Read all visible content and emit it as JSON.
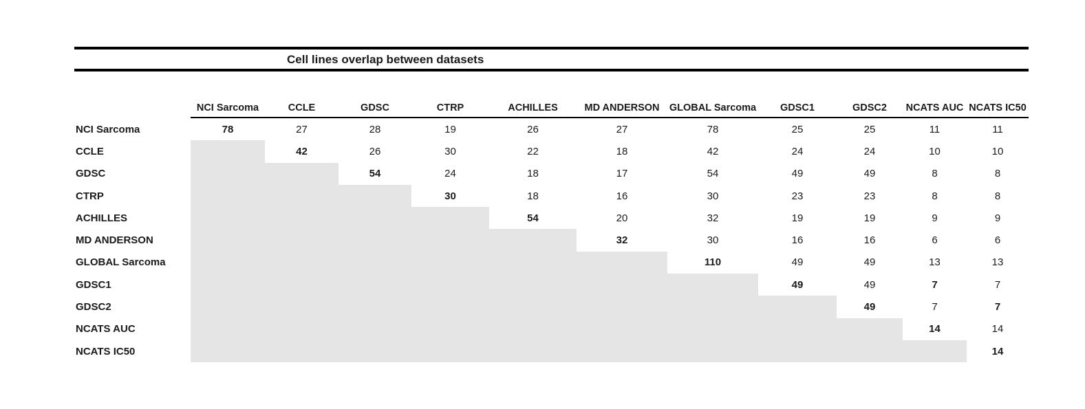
{
  "title": "Cell lines overlap between datasets",
  "chart_data": {
    "type": "table",
    "title": "Cell lines overlap between datasets",
    "description_style": "upper-triangular overlap count matrix; diagonal values bold; lower triangle filled gray",
    "columns": [
      "NCI Sarcoma",
      "CCLE",
      "GDSC",
      "CTRP",
      "ACHILLES",
      "MD ANDERSON",
      "GLOBAL Sarcoma",
      "GDSC1",
      "GDSC2",
      "NCATS AUC",
      "NCATS IC50"
    ],
    "rows": [
      {
        "label": "NCI Sarcoma",
        "gray_cols": 0,
        "values": [
          {
            "v": 78,
            "b": true
          },
          {
            "v": 27
          },
          {
            "v": 28
          },
          {
            "v": 19
          },
          {
            "v": 26
          },
          {
            "v": 27
          },
          {
            "v": 78
          },
          {
            "v": 25
          },
          {
            "v": 25
          },
          {
            "v": 11
          },
          {
            "v": 11
          }
        ]
      },
      {
        "label": "CCLE",
        "gray_cols": 1,
        "values": [
          {
            "v": 42,
            "b": true
          },
          {
            "v": 26
          },
          {
            "v": 30
          },
          {
            "v": 22
          },
          {
            "v": 18
          },
          {
            "v": 42
          },
          {
            "v": 24
          },
          {
            "v": 24
          },
          {
            "v": 10
          },
          {
            "v": 10
          }
        ]
      },
      {
        "label": "GDSC",
        "gray_cols": 2,
        "values": [
          {
            "v": 54,
            "b": true
          },
          {
            "v": 24
          },
          {
            "v": 18
          },
          {
            "v": 17
          },
          {
            "v": 54
          },
          {
            "v": 49
          },
          {
            "v": 49
          },
          {
            "v": 8
          },
          {
            "v": 8
          }
        ]
      },
      {
        "label": "CTRP",
        "gray_cols": 3,
        "values": [
          {
            "v": 30,
            "b": true
          },
          {
            "v": 18
          },
          {
            "v": 16
          },
          {
            "v": 30
          },
          {
            "v": 23
          },
          {
            "v": 23
          },
          {
            "v": 8
          },
          {
            "v": 8
          }
        ]
      },
      {
        "label": "ACHILLES",
        "gray_cols": 4,
        "values": [
          {
            "v": 54,
            "b": true
          },
          {
            "v": 20
          },
          {
            "v": 32
          },
          {
            "v": 19
          },
          {
            "v": 19
          },
          {
            "v": 9
          },
          {
            "v": 9
          }
        ]
      },
      {
        "label": "MD ANDERSON",
        "gray_cols": 5,
        "values": [
          {
            "v": 32,
            "b": true
          },
          {
            "v": 30
          },
          {
            "v": 16
          },
          {
            "v": 16
          },
          {
            "v": 6
          },
          {
            "v": 6
          }
        ]
      },
      {
        "label": "GLOBAL Sarcoma",
        "gray_cols": 6,
        "values": [
          {
            "v": 110,
            "b": true
          },
          {
            "v": 49
          },
          {
            "v": 49
          },
          {
            "v": 13
          },
          {
            "v": 13
          }
        ]
      },
      {
        "label": "GDSC1",
        "gray_cols": 7,
        "values": [
          {
            "v": 49,
            "b": true
          },
          {
            "v": 49
          },
          {
            "v": 7,
            "b": true
          },
          {
            "v": 7
          }
        ]
      },
      {
        "label": "GDSC2",
        "gray_cols": 8,
        "values": [
          {
            "v": 49,
            "b": true
          },
          {
            "v": 7
          },
          {
            "v": 7,
            "b": true
          }
        ]
      },
      {
        "label": "NCATS AUC",
        "gray_cols": 9,
        "values": [
          {
            "v": 14,
            "b": true
          },
          {
            "v": 14
          }
        ]
      },
      {
        "label": "NCATS IC50",
        "gray_cols": 10,
        "values": [
          {
            "v": 14,
            "b": true
          }
        ]
      }
    ],
    "colors": {
      "lower_triangle_fill": "#e6e5e5",
      "rule_color": "#000000",
      "text_color": "#1a1a1a"
    },
    "layout": {
      "grid": "off",
      "header_underline": true,
      "double_rule_around_title": true
    }
  }
}
